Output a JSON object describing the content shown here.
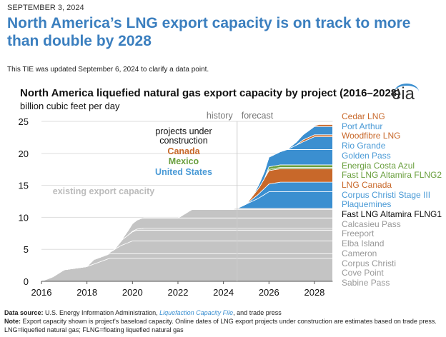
{
  "header": {
    "date": "SEPTEMBER 3, 2024",
    "title": "North America’s LNG export capacity is on track to more than double by 2028",
    "update_note": "This TIE was updated September 6, 2024 to clarify a data point."
  },
  "logo": "eia",
  "chart_data": {
    "type": "area",
    "title": "North America liquefied natural gas export capacity by project (2016–2028)",
    "ylabel": "billion cubic feet per day",
    "xlim": [
      2016,
      2028.8
    ],
    "ylim": [
      0,
      25
    ],
    "xticks": [
      "2016",
      "2018",
      "2020",
      "2022",
      "2024",
      "2026",
      "2028"
    ],
    "yticks": [
      "0",
      "5",
      "10",
      "15",
      "20",
      "25"
    ],
    "forecast_start": 2024.6,
    "annotations": {
      "history": "history",
      "forecast": "forecast",
      "under_construction": "projects under construction",
      "canada": "Canada",
      "mexico": "Mexico",
      "united_states": "United States",
      "existing": "existing export capacity",
      "existing_us": "United States",
      "existing_mexico": "Mexico"
    },
    "colors": {
      "existing": "#c4c4c4",
      "us": "#3b8fd0",
      "canada": "#c8682a",
      "mexico": "#6a9f3e",
      "us_label": "#4a9ad6"
    },
    "series": [
      {
        "name": "Sabine Pass",
        "group": "existing",
        "points": [
          [
            2016,
            0
          ],
          [
            2016.5,
            0.7
          ],
          [
            2017,
            1.8
          ],
          [
            2018,
            2.3
          ],
          [
            2019,
            3.6
          ],
          [
            2028.8,
            3.6
          ]
        ]
      },
      {
        "name": "Cove Point",
        "group": "existing",
        "points": [
          [
            2018,
            0
          ],
          [
            2018.3,
            0.7
          ],
          [
            2028.8,
            0.7
          ]
        ]
      },
      {
        "name": "Corpus Christi",
        "group": "existing",
        "points": [
          [
            2018.9,
            0
          ],
          [
            2019.5,
            1.3
          ],
          [
            2020,
            2.0
          ],
          [
            2028.8,
            2.0
          ]
        ]
      },
      {
        "name": "Cameron",
        "group": "existing",
        "points": [
          [
            2019.2,
            0
          ],
          [
            2019.6,
            0.9
          ],
          [
            2020.2,
            1.7
          ],
          [
            2028.8,
            1.7
          ]
        ]
      },
      {
        "name": "Elba Island",
        "group": "existing",
        "points": [
          [
            2019.8,
            0
          ],
          [
            2020.5,
            0.3
          ],
          [
            2028.8,
            0.3
          ]
        ]
      },
      {
        "name": "Freeport",
        "group": "existing",
        "points": [
          [
            2019.5,
            0
          ],
          [
            2020,
            1.2
          ],
          [
            2020.4,
            1.6
          ],
          [
            2028.8,
            1.6
          ]
        ]
      },
      {
        "name": "Calcasieu Pass",
        "group": "existing",
        "points": [
          [
            2022,
            0
          ],
          [
            2022.6,
            1.3
          ],
          [
            2028.8,
            1.3
          ]
        ]
      },
      {
        "name": "Fast LNG Altamira FLNG1",
        "group": "existing_mx",
        "points": [
          [
            2024.4,
            0
          ],
          [
            2024.5,
            0.2
          ],
          [
            2028.8,
            0.2
          ]
        ]
      },
      {
        "name": "Plaquemines",
        "group": "us",
        "points": [
          [
            2024.6,
            0
          ],
          [
            2025.5,
            1.5
          ],
          [
            2026,
            2.6
          ],
          [
            2028.8,
            2.6
          ]
        ]
      },
      {
        "name": "Corpus Christi Stage III",
        "group": "us",
        "points": [
          [
            2025,
            0
          ],
          [
            2025.5,
            0.6
          ],
          [
            2026,
            1.2
          ],
          [
            2026.5,
            1.5
          ],
          [
            2028.8,
            1.5
          ]
        ]
      },
      {
        "name": "LNG Canada",
        "group": "canada",
        "points": [
          [
            2025,
            0
          ],
          [
            2025.6,
            1.0
          ],
          [
            2026,
            2.1
          ],
          [
            2028.8,
            2.1
          ]
        ]
      },
      {
        "name": "Fast LNG Altamira FLNG2",
        "group": "mexico",
        "points": [
          [
            2025.8,
            0
          ],
          [
            2026,
            0.2
          ],
          [
            2028.8,
            0.2
          ]
        ]
      },
      {
        "name": "Energia Costa Azul",
        "group": "mexico",
        "points": [
          [
            2025.8,
            0
          ],
          [
            2026,
            0.4
          ],
          [
            2028.8,
            0.4
          ]
        ]
      },
      {
        "name": "Golden Pass",
        "group": "us",
        "points": [
          [
            2025.3,
            0
          ],
          [
            2026,
            1.5
          ],
          [
            2026.8,
            2.4
          ],
          [
            2028.8,
            2.4
          ]
        ]
      },
      {
        "name": "Rio Grande",
        "group": "us",
        "points": [
          [
            2026.8,
            0
          ],
          [
            2027.5,
            1.2
          ],
          [
            2028,
            2.0
          ],
          [
            2028.8,
            2.0
          ]
        ]
      },
      {
        "name": "Woodfibre LNG",
        "group": "canada",
        "points": [
          [
            2027.2,
            0
          ],
          [
            2027.5,
            0.3
          ],
          [
            2028.8,
            0.3
          ]
        ]
      },
      {
        "name": "Port Arthur",
        "group": "us",
        "points": [
          [
            2026.8,
            0
          ],
          [
            2027.5,
            0.8
          ],
          [
            2028,
            1.3
          ],
          [
            2028.8,
            1.3
          ]
        ]
      },
      {
        "name": "Cedar LNG",
        "group": "canada",
        "points": [
          [
            2027.9,
            0
          ],
          [
            2028.2,
            0.3
          ],
          [
            2028.8,
            0.3
          ]
        ]
      }
    ]
  },
  "footer": {
    "source_label": "Data source:",
    "source_text": " U.S. Energy Information Administration, ",
    "source_link": "Liquefaction Capacity File",
    "source_end": ", and trade press",
    "note_label": "Note:",
    "note_text": " Export capacity shown is project's baseload capacity. Online dates of LNG export projects under construction are estimates based on trade press.",
    "abbrev": "LNG=liquefied natural gas; FLNG=floating liquefied natural gas"
  }
}
